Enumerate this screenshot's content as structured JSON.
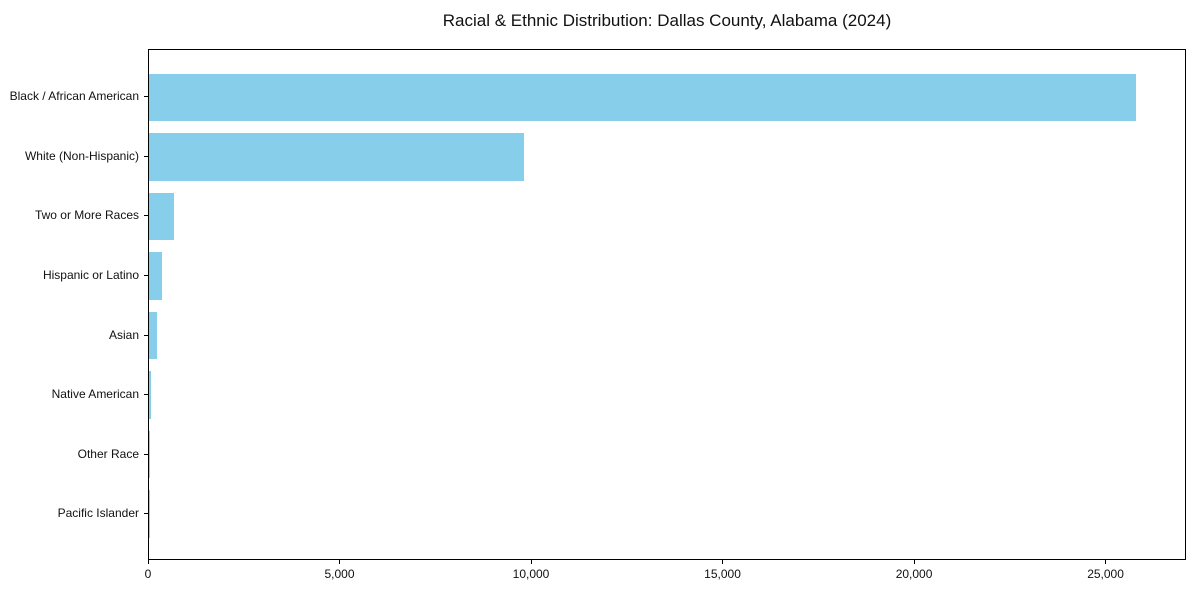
{
  "chart_data": {
    "type": "bar",
    "orientation": "horizontal",
    "title": "Racial & Ethnic Distribution: Dallas County, Alabama (2024)",
    "categories": [
      "Black / African American",
      "White (Non-Hispanic)",
      "Two or More Races",
      "Hispanic or Latino",
      "Asian",
      "Native American",
      "Other Race",
      "Pacific Islander"
    ],
    "values": [
      25780,
      9790,
      650,
      340,
      210,
      40,
      15,
      5
    ],
    "xlabel": "",
    "ylabel": "",
    "xticks": [
      0,
      5000,
      10000,
      15000,
      20000,
      25000
    ],
    "xtick_labels": [
      "0",
      "5,000",
      "10,000",
      "15,000",
      "20,000",
      "25,000"
    ],
    "xlim": [
      0,
      27100
    ],
    "bar_color": "#87CEEB",
    "axis_color": "#000000",
    "text_color": "#111111",
    "background_color": "#ffffff",
    "grid": false,
    "legend": null
  }
}
